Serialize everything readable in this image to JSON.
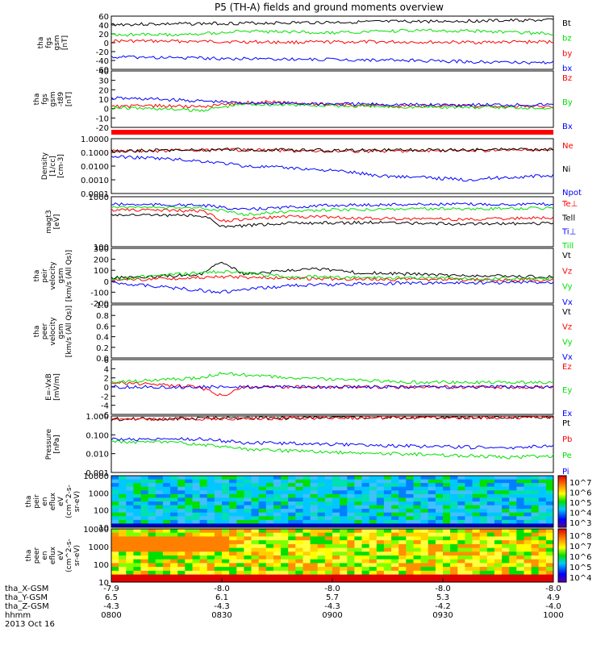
{
  "title": "P5 (TH-A) fields and ground moments overview",
  "colors": {
    "black": "#000000",
    "red": "#ff0000",
    "green": "#00e000",
    "blue": "#0000ff"
  },
  "chart_data": [
    {
      "id": "fgs_gsm",
      "type": "line",
      "ylabel_lines": [
        "tha",
        "fgs",
        "gsm",
        "[nT]"
      ],
      "ylim": [
        -60,
        60
      ],
      "yticks": [
        "60",
        "40",
        "20",
        "0",
        "-20",
        "-40",
        "-60"
      ],
      "series": [
        {
          "name": "Bt",
          "color": "black",
          "points": [
            [
              0,
              41
            ],
            [
              0.3,
              44
            ],
            [
              0.6,
              47
            ],
            [
              0.9,
              50
            ],
            [
              1,
              51
            ]
          ]
        },
        {
          "name": "bz",
          "color": "green",
          "points": [
            [
              0,
              18
            ],
            [
              0.15,
              18
            ],
            [
              0.3,
              26
            ],
            [
              0.5,
              22
            ],
            [
              0.7,
              28
            ],
            [
              0.85,
              26
            ],
            [
              1,
              20
            ]
          ]
        },
        {
          "name": "by",
          "color": "red",
          "points": [
            [
              0,
              4
            ],
            [
              0.2,
              3
            ],
            [
              0.4,
              1
            ],
            [
              0.6,
              2
            ],
            [
              0.8,
              1
            ],
            [
              1,
              2
            ]
          ]
        },
        {
          "name": "bx",
          "color": "blue",
          "points": [
            [
              0,
              -32
            ],
            [
              0.3,
              -36
            ],
            [
              0.6,
              -39
            ],
            [
              0.9,
              -44
            ],
            [
              1,
              -45
            ]
          ]
        }
      ],
      "legend": [
        "Bt",
        "bz",
        "by",
        "bx"
      ]
    },
    {
      "id": "fgs_gsm_t89",
      "type": "line",
      "ylabel_lines": [
        "tha",
        "fgs",
        "gsm",
        "-t89",
        "[nT]"
      ],
      "ylim": [
        -20,
        40
      ],
      "yticks": [
        "40",
        "30",
        "20",
        "10",
        "0",
        "-10",
        "-20"
      ],
      "series": [
        {
          "name": "Bz",
          "color": "red",
          "points": [
            [
              0,
              2
            ],
            [
              0.1,
              3
            ],
            [
              0.2,
              2
            ],
            [
              0.3,
              6
            ],
            [
              0.35,
              7
            ],
            [
              0.5,
              4
            ],
            [
              0.7,
              3
            ],
            [
              1,
              2
            ]
          ]
        },
        {
          "name": "By",
          "color": "green",
          "points": [
            [
              0,
              1
            ],
            [
              0.1,
              0
            ],
            [
              0.2,
              -2
            ],
            [
              0.3,
              5
            ],
            [
              0.4,
              4
            ],
            [
              0.6,
              2
            ],
            [
              1,
              1
            ]
          ]
        },
        {
          "name": "Bx",
          "color": "blue",
          "points": [
            [
              0,
              11
            ],
            [
              0.1,
              10
            ],
            [
              0.2,
              8
            ],
            [
              0.3,
              6
            ],
            [
              0.5,
              5
            ],
            [
              0.7,
              4
            ],
            [
              1,
              4
            ]
          ]
        }
      ],
      "legend": [
        "Bz",
        "By",
        "Bx"
      ]
    },
    {
      "id": "density",
      "type": "line",
      "ylabel_lines": [
        "Density",
        "[1/cc]",
        "[cm-3]"
      ],
      "log": true,
      "ylim": [
        0.0001,
        1
      ],
      "yticks": [
        "1.0000",
        "0.1000",
        "0.0100",
        "0.0010",
        "0.0001"
      ],
      "series": [
        {
          "name": "Ne",
          "color": "red",
          "points": [
            [
              0,
              0.12
            ],
            [
              0.3,
              0.15
            ],
            [
              0.5,
              0.12
            ],
            [
              0.7,
              0.13
            ],
            [
              1,
              0.15
            ]
          ]
        },
        {
          "name": "Ni",
          "color": "black",
          "points": [
            [
              0,
              0.13
            ],
            [
              0.3,
              0.16
            ],
            [
              0.5,
              0.14
            ],
            [
              0.7,
              0.15
            ],
            [
              1,
              0.16
            ]
          ]
        },
        {
          "name": "Npot",
          "color": "blue",
          "points": [
            [
              0,
              0.05
            ],
            [
              0.15,
              0.03
            ],
            [
              0.3,
              0.01
            ],
            [
              0.45,
              0.006
            ],
            [
              0.6,
              0.002
            ],
            [
              0.8,
              0.001
            ],
            [
              1,
              0.002
            ]
          ]
        }
      ],
      "legend": [
        "Ne",
        "Ni",
        "Npot"
      ]
    },
    {
      "id": "temperature",
      "type": "line",
      "ylabel_lines": [
        "magt3",
        "[eV]"
      ],
      "log": true,
      "ylim": [
        100,
        20000
      ],
      "yticks": [
        "1000",
        "100"
      ],
      "series": [
        {
          "name": "Te⊥",
          "color": "red",
          "points": [
            [
              0,
              5000
            ],
            [
              0.2,
              4500
            ],
            [
              0.25,
              1500
            ],
            [
              0.4,
              2500
            ],
            [
              0.6,
              2000
            ],
            [
              0.8,
              1800
            ],
            [
              1,
              2200
            ]
          ]
        },
        {
          "name": "Tell",
          "color": "black",
          "points": [
            [
              0,
              3000
            ],
            [
              0.2,
              2800
            ],
            [
              0.25,
              800
            ],
            [
              0.4,
              1200
            ],
            [
              0.6,
              1300
            ],
            [
              0.8,
              1100
            ],
            [
              1,
              1200
            ]
          ]
        },
        {
          "name": "Ti⊥",
          "color": "blue",
          "points": [
            [
              0,
              9000
            ],
            [
              0.2,
              8000
            ],
            [
              0.3,
              5000
            ],
            [
              0.5,
              8000
            ],
            [
              0.7,
              9000
            ],
            [
              1,
              9000
            ]
          ]
        },
        {
          "name": "Till",
          "color": "green",
          "points": [
            [
              0,
              7000
            ],
            [
              0.2,
              6000
            ],
            [
              0.3,
              3000
            ],
            [
              0.5,
              5000
            ],
            [
              0.7,
              5500
            ],
            [
              1,
              6000
            ]
          ]
        }
      ],
      "legend": [
        "Te⊥",
        "Tell",
        "Ti⊥",
        "Till"
      ]
    },
    {
      "id": "peir_velocity",
      "type": "line",
      "ylabel_lines": [
        "tha",
        "peir",
        "velocity",
        "gsm",
        "[km/s (All Qs)]"
      ],
      "ylim": [
        -200,
        300
      ],
      "yticks": [
        "300",
        "200",
        "100",
        "0",
        "-100",
        "-200"
      ],
      "series": [
        {
          "name": "Vt",
          "color": "black",
          "points": [
            [
              0,
              30
            ],
            [
              0.2,
              60
            ],
            [
              0.25,
              180
            ],
            [
              0.3,
              60
            ],
            [
              0.45,
              120
            ],
            [
              0.55,
              80
            ],
            [
              0.8,
              50
            ],
            [
              1,
              40
            ]
          ]
        },
        {
          "name": "Vz",
          "color": "red",
          "points": [
            [
              0,
              10
            ],
            [
              0.25,
              40
            ],
            [
              0.5,
              20
            ],
            [
              1,
              10
            ]
          ]
        },
        {
          "name": "Vy",
          "color": "green",
          "points": [
            [
              0,
              20
            ],
            [
              0.25,
              90
            ],
            [
              0.4,
              40
            ],
            [
              1,
              20
            ]
          ]
        },
        {
          "name": "Vx",
          "color": "blue",
          "points": [
            [
              0,
              -10
            ],
            [
              0.25,
              -100
            ],
            [
              0.4,
              -40
            ],
            [
              0.6,
              -20
            ],
            [
              1,
              -10
            ]
          ]
        }
      ],
      "legend": [
        "Vt",
        "Vz",
        "Vy",
        "Vx"
      ]
    },
    {
      "id": "peer_velocity",
      "type": "line",
      "ylabel_lines": [
        "tha",
        "peer",
        "velocity",
        "gsm",
        "[km/s (All Qs)]"
      ],
      "ylim": [
        0,
        1
      ],
      "yticks": [
        "1.0",
        "0.8",
        "0.6",
        "0.4",
        "0.2",
        "0.0"
      ],
      "series": [],
      "legend": [
        "Vt",
        "Vz",
        "Vy",
        "Vx"
      ]
    },
    {
      "id": "efield",
      "type": "line",
      "ylabel_lines": [
        "E=-VxB",
        "[mV/m]"
      ],
      "ylim": [
        -6,
        6
      ],
      "yticks": [
        "6",
        "4",
        "2",
        "0",
        "-2",
        "-4",
        "-6"
      ],
      "series": [
        {
          "name": "Ez",
          "color": "red",
          "points": [
            [
              0,
              1
            ],
            [
              0.2,
              0
            ],
            [
              0.25,
              -2
            ],
            [
              0.3,
              0
            ],
            [
              0.5,
              0
            ],
            [
              1,
              0
            ]
          ]
        },
        {
          "name": "Ey",
          "color": "green",
          "points": [
            [
              0,
              1
            ],
            [
              0.2,
              2
            ],
            [
              0.25,
              3
            ],
            [
              0.4,
              2
            ],
            [
              0.7,
              1
            ],
            [
              1,
              1
            ]
          ]
        },
        {
          "name": "Ex",
          "color": "blue",
          "points": [
            [
              0,
              0
            ],
            [
              1,
              0
            ]
          ]
        }
      ],
      "legend": [
        "Ez",
        "Ey",
        "Ex"
      ]
    },
    {
      "id": "pressure",
      "type": "line",
      "ylabel_lines": [
        "Pressure",
        "[nPa]"
      ],
      "log": true,
      "ylim": [
        0.0005,
        1.2
      ],
      "yticks": [
        "1.000",
        "0.100",
        "0.010",
        "0.001"
      ],
      "series": [
        {
          "name": "Pt",
          "color": "black",
          "points": [
            [
              0,
              0.8
            ],
            [
              0.5,
              0.95
            ],
            [
              1,
              1.05
            ]
          ]
        },
        {
          "name": "Pb",
          "color": "red",
          "points": [
            [
              0,
              0.78
            ],
            [
              0.5,
              0.92
            ],
            [
              1,
              1.02
            ]
          ]
        },
        {
          "name": "Pe",
          "color": "green",
          "points": [
            [
              0,
              0.035
            ],
            [
              0.15,
              0.03
            ],
            [
              0.3,
              0.012
            ],
            [
              0.5,
              0.008
            ],
            [
              0.7,
              0.006
            ],
            [
              0.9,
              0.004
            ],
            [
              1,
              0.005
            ]
          ]
        },
        {
          "name": "Pi",
          "color": "blue",
          "points": [
            [
              0,
              0.05
            ],
            [
              0.2,
              0.05
            ],
            [
              0.3,
              0.03
            ],
            [
              0.5,
              0.025
            ],
            [
              0.7,
              0.018
            ],
            [
              0.9,
              0.015
            ],
            [
              1,
              0.02
            ]
          ]
        }
      ],
      "legend": [
        "Pt",
        "Pb",
        "Pe",
        "Pi"
      ]
    },
    {
      "id": "peir_eflux",
      "type": "heatmap",
      "ylabel_lines": [
        "tha",
        "peir",
        "en",
        "eflux",
        "eV",
        "(cm^2-s-",
        "sr-eV)"
      ],
      "log": true,
      "ylim": [
        5,
        30000
      ],
      "yticks": [
        "10000",
        "1000",
        "100",
        "10"
      ],
      "colorbar_ticks": [
        "10^7",
        "10^6",
        "10^5",
        "10^4",
        "10^3"
      ]
    },
    {
      "id": "peer_eflux",
      "type": "heatmap",
      "ylabel_lines": [
        "tha",
        "peer",
        "en",
        "eflux",
        "eV",
        "(cm^2-s-",
        "sr-eV)"
      ],
      "log": true,
      "ylim": [
        5,
        30000
      ],
      "yticks": [
        "10000",
        "1000",
        "100",
        "10"
      ],
      "colorbar_ticks": [
        "10^8",
        "10^7",
        "10^6",
        "10^5",
        "10^4"
      ]
    }
  ],
  "xaxis": {
    "rows": [
      {
        "label": "tha_X-GSM",
        "values": [
          "-7.9",
          "-8.0",
          "-8.0",
          "-8.0",
          "-8.0"
        ]
      },
      {
        "label": "tha_Y-GSM",
        "values": [
          "6.5",
          "6.1",
          "5.7",
          "5.3",
          "4.9"
        ]
      },
      {
        "label": "tha_Z-GSM",
        "values": [
          "-4.3",
          "-4.3",
          "-4.3",
          "-4.2",
          "-4.0"
        ]
      },
      {
        "label": "hhmm",
        "values": [
          "0800",
          "0830",
          "0900",
          "0930",
          "1000"
        ]
      }
    ],
    "date": "2013 Oct 16"
  }
}
